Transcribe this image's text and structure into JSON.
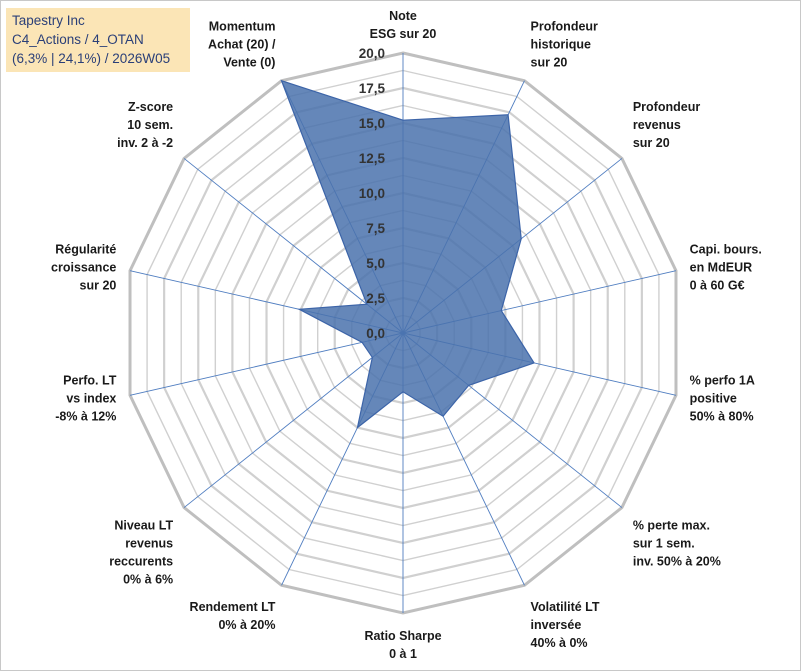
{
  "header": {
    "line1": "Tapestry Inc",
    "line2": "C4_Actions / 4_OTAN",
    "line3": "(6,3% | 24,1%) / 2026W05"
  },
  "colors": {
    "fill": "#4a72ad",
    "stroke": "#3c64a8",
    "grid": "#d0d0d0",
    "outer_grid": "#bfbfbf",
    "spoke": "#4f7dc0",
    "title_bg": "#fbe5b6"
  },
  "chart_data": {
    "type": "radar",
    "rmin": 0,
    "rmax": 20,
    "tick_step": 2.5,
    "tick_labels": [
      "0,0",
      "2,5",
      "5,0",
      "7,5",
      "10,0",
      "12,5",
      "15,0",
      "17,5",
      "20,0"
    ],
    "categories": [
      [
        "Note",
        "ESG sur 20"
      ],
      [
        "Profondeur",
        "historique",
        "sur 20"
      ],
      [
        "Profondeur",
        "revenus",
        "sur 20"
      ],
      [
        "Capi. bours.",
        "en MdEUR",
        "0 à 60 G€"
      ],
      [
        "% perfo 1A",
        "positive",
        "50% à 80%"
      ],
      [
        "% perte max.",
        "sur 1 sem.",
        "inv. 50% à 20%"
      ],
      [
        "Volatilité LT",
        "inversée",
        "40% à 0%"
      ],
      [
        "Ratio Sharpe",
        "0 à 1"
      ],
      [
        "Rendement LT",
        "0% à 20%"
      ],
      [
        "Niveau LT",
        "revenus",
        "reccurents",
        "0% à 6%"
      ],
      [
        "Perfo. LT",
        "vs index",
        "-8% à 12%"
      ],
      [
        "Régularité",
        "croissance",
        "sur 20"
      ],
      [
        "Z-score",
        "10 sem.",
        "inv. 2 à -2"
      ],
      [
        "Momentum",
        "Achat (20) /",
        "Vente (0)"
      ]
    ],
    "series": [
      {
        "name": "Tapestry Inc",
        "values": [
          15.2,
          17.3,
          10.8,
          7.2,
          9.6,
          6.0,
          6.6,
          4.2,
          7.5,
          2.8,
          3.0,
          7.6,
          3.3,
          20.0
        ]
      }
    ]
  }
}
